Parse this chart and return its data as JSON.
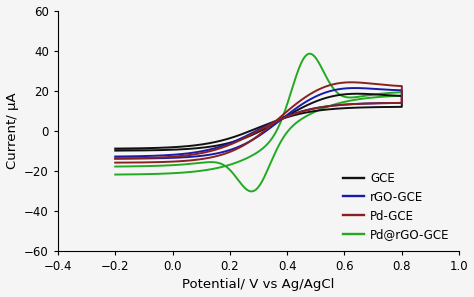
{
  "title": "",
  "xlabel": "Potential/ V vs Ag/AgCl",
  "ylabel": "Current/ µA",
  "xlim": [
    -0.4,
    1.0
  ],
  "ylim": [
    -60,
    60
  ],
  "xticks": [
    -0.4,
    -0.2,
    0.0,
    0.2,
    0.4,
    0.6,
    0.8,
    1.0
  ],
  "yticks": [
    -60,
    -40,
    -20,
    0,
    20,
    40,
    60
  ],
  "colors": {
    "GCE": "#111111",
    "rGO-GCE": "#1a1aaa",
    "Pd-GCE": "#8b2020",
    "Pd@rGO-GCE": "#22aa22"
  },
  "legend_labels": [
    "GCE",
    "rGO-GCE",
    "Pd-GCE",
    "Pd@rGO-GCE"
  ],
  "background_color": "#f5f5f5",
  "linewidth": 1.4,
  "legend_fontsize": 8.5
}
